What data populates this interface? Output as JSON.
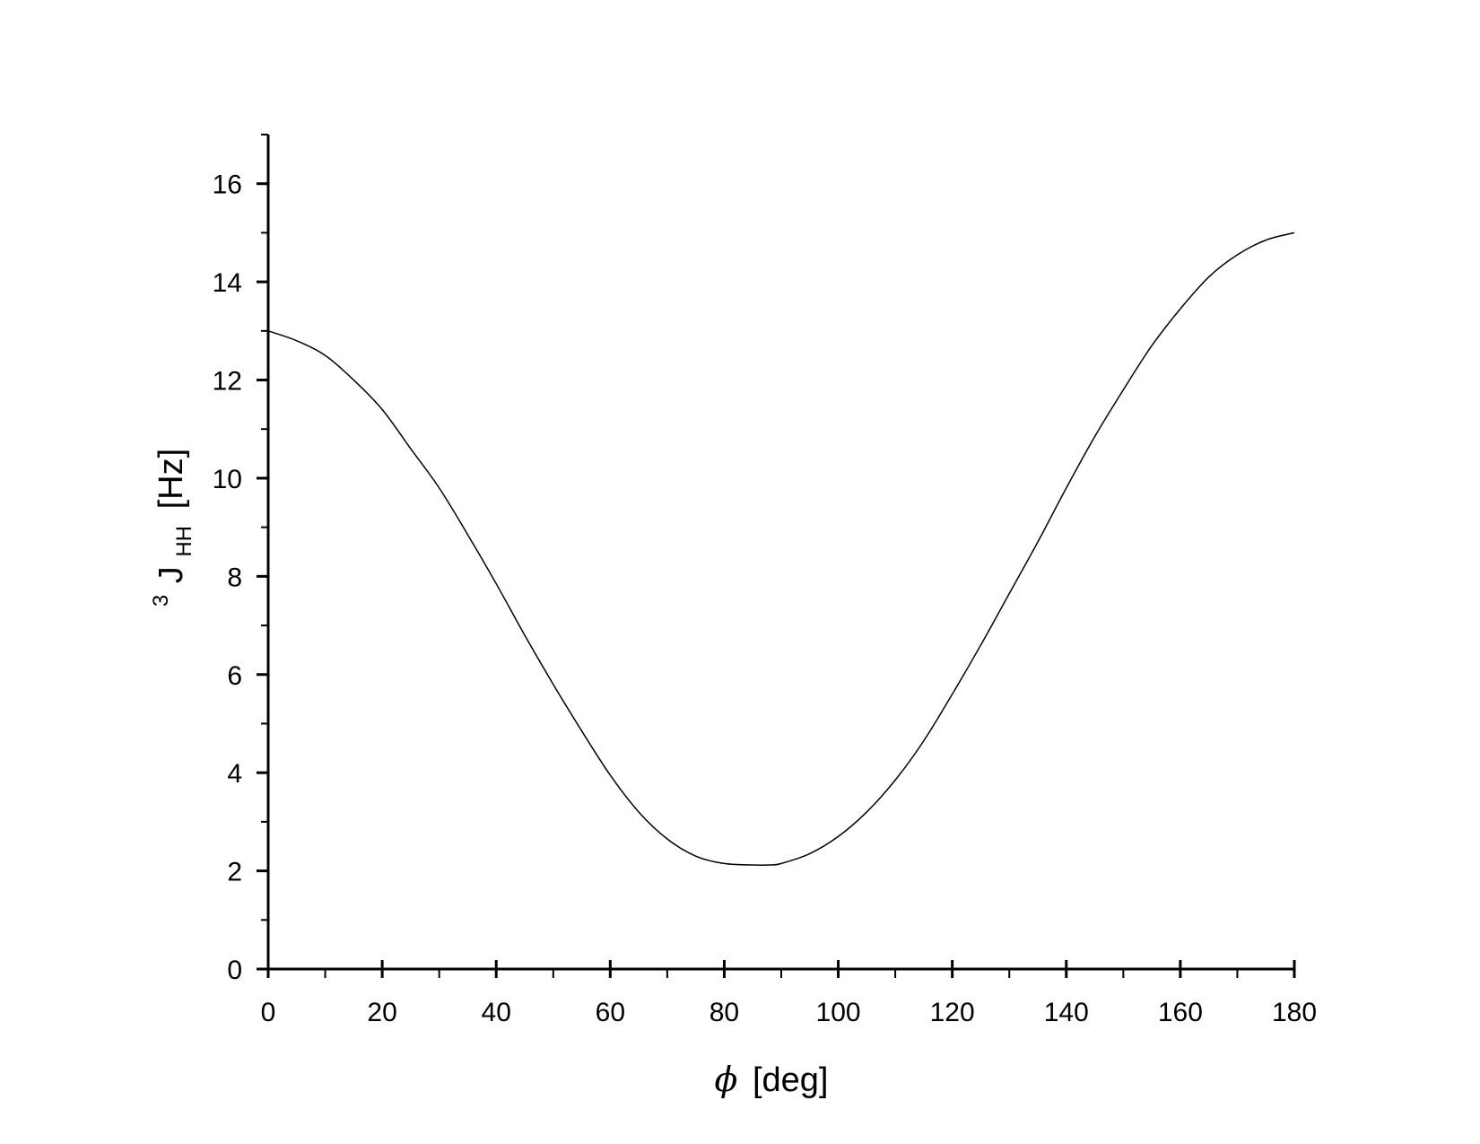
{
  "chart_data": {
    "type": "line",
    "xlabel_symbol": "ϕ",
    "xlabel_text": "[deg]",
    "ylabel_sup": "3",
    "ylabel_main": "J",
    "ylabel_sub": "HH",
    "ylabel_unit": "[Hz]",
    "xlim": [
      0,
      180
    ],
    "ylim": [
      0,
      17
    ],
    "x_ticks": [
      0,
      20,
      40,
      60,
      80,
      100,
      120,
      140,
      160,
      180
    ],
    "x_tick_labels": [
      "0",
      "20",
      "40",
      "60",
      "80",
      "100",
      "120",
      "140",
      "160",
      "180"
    ],
    "x_minor_step": 10,
    "y_ticks": [
      0,
      2,
      4,
      6,
      8,
      10,
      12,
      14,
      16
    ],
    "y_tick_labels": [
      "0",
      "2",
      "4",
      "6",
      "8",
      "10",
      "12",
      "14",
      "16"
    ],
    "y_minor_step": 1,
    "grid": false,
    "line_color": "#000000",
    "series": [
      {
        "x": [
          0,
          5,
          10,
          15,
          20,
          25,
          30,
          35,
          40,
          45,
          50,
          55,
          60,
          65,
          70,
          75,
          80,
          85,
          88,
          90,
          95,
          100,
          105,
          110,
          115,
          120,
          125,
          130,
          135,
          140,
          145,
          150,
          155,
          160,
          165,
          170,
          175,
          180
        ],
        "y": [
          13.0,
          12.8,
          12.5,
          12.0,
          11.4,
          10.6,
          9.8,
          8.85,
          7.85,
          6.8,
          5.8,
          4.85,
          3.95,
          3.2,
          2.65,
          2.3,
          2.15,
          2.12,
          2.12,
          2.15,
          2.35,
          2.7,
          3.2,
          3.85,
          4.65,
          5.6,
          6.6,
          7.65,
          8.7,
          9.8,
          10.85,
          11.8,
          12.7,
          13.45,
          14.1,
          14.55,
          14.85,
          15.0
        ]
      }
    ]
  }
}
